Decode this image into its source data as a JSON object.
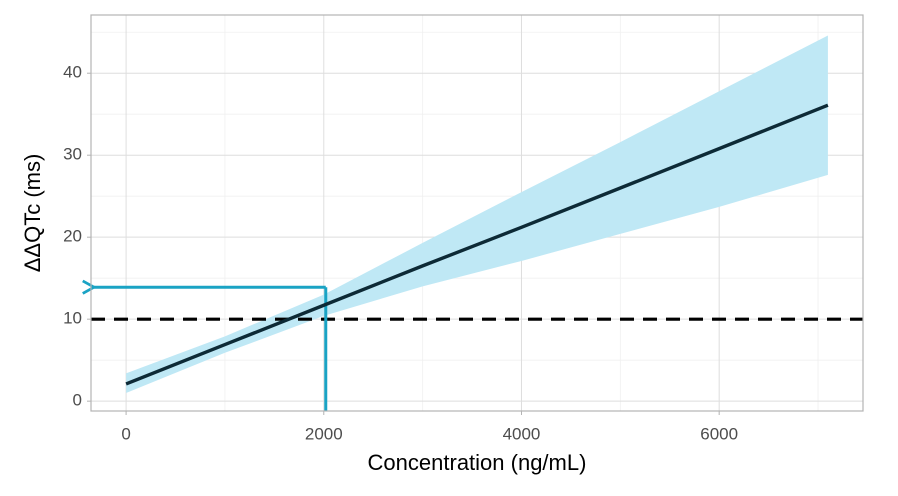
{
  "chart_data": {
    "type": "line",
    "x_label": "Concentration (ng/mL)",
    "y_label": "ΔΔQTc (ms)",
    "x": [
      0,
      1000,
      2000,
      3000,
      4000,
      5000,
      6000,
      7100
    ],
    "series": [
      {
        "color": "#0d2a36",
        "values": [
          2.1,
          6.9,
          11.7,
          16.5,
          21.2,
          26.0,
          30.8,
          36.1
        ]
      }
    ],
    "band": {
      "color": "#bfe8f5",
      "lower": [
        1.0,
        5.9,
        10.4,
        14.0,
        17.1,
        20.4,
        23.7,
        27.6
      ],
      "upper": [
        3.4,
        7.9,
        13.0,
        19.3,
        25.5,
        31.6,
        37.8,
        44.6
      ]
    },
    "reference_line": {
      "y": 10,
      "color": "#000000"
    },
    "threshold": {
      "x": 2020,
      "y": 13.9,
      "color": "#1aa3c4"
    },
    "xlim": [
      -355,
      7455
    ],
    "ylim": [
      -1.2,
      47.1
    ],
    "xticks": [
      0,
      2000,
      4000,
      6000
    ],
    "yticks": [
      0,
      10,
      20,
      30,
      40
    ],
    "xminor": [
      1000,
      3000,
      5000,
      7000
    ],
    "yminor": [
      5,
      15,
      25,
      35,
      45
    ],
    "grid": true
  }
}
